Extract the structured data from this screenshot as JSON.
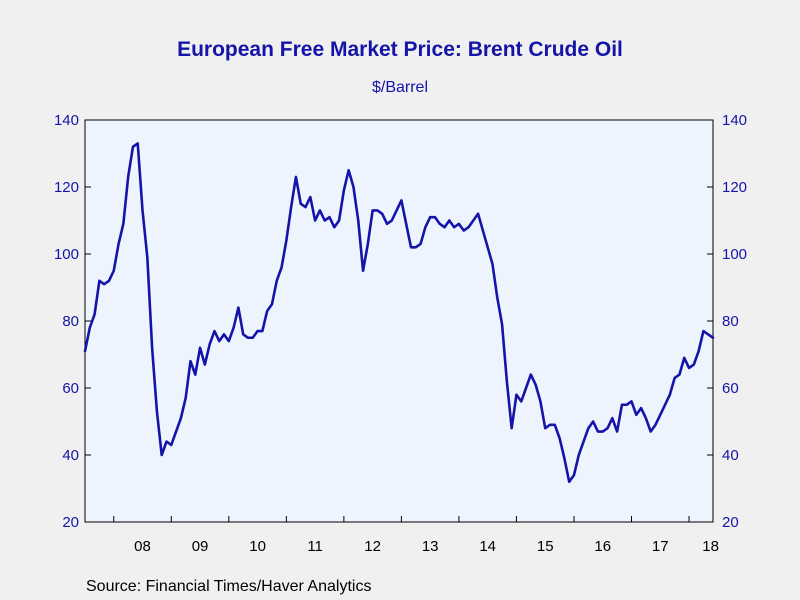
{
  "chart_data": {
    "type": "line",
    "title": "European Free Market Price: Brent Crude Oil",
    "subtitle": "$/Barrel",
    "source": "Source:  Financial Times/Haver Analytics",
    "ylim": [
      20,
      140
    ],
    "yticks": [
      20,
      40,
      60,
      80,
      100,
      120,
      140
    ],
    "x_start": "2007-07",
    "x_end": "2018-06",
    "xtick_labels": [
      "08",
      "09",
      "10",
      "11",
      "12",
      "13",
      "14",
      "15",
      "16",
      "17",
      "18"
    ],
    "grid": false,
    "colors": {
      "line": "#1414a8",
      "plot_bg": "#eef4fe",
      "page_bg": "#f0f0f0",
      "axis": "#000000",
      "tick_label": "#1414a8"
    },
    "series": [
      {
        "values": [
          71,
          78,
          82,
          92,
          91,
          92,
          95,
          103,
          109,
          123,
          132,
          133,
          113,
          99,
          72,
          53,
          40,
          44,
          43,
          47,
          51,
          57,
          68,
          64,
          72,
          67,
          73,
          77,
          74,
          76,
          74,
          78,
          84,
          76,
          75,
          75,
          77,
          77,
          83,
          85,
          92,
          96,
          104,
          114,
          123,
          115,
          114,
          117,
          110,
          113,
          110,
          111,
          108,
          110,
          119,
          125,
          120,
          110,
          95,
          103,
          113,
          113,
          112,
          109,
          110,
          113,
          116,
          109,
          102,
          102,
          103,
          108,
          111,
          111,
          109,
          108,
          110,
          108,
          109,
          107,
          108,
          110,
          112,
          107,
          102,
          97,
          87,
          79,
          62,
          48,
          58,
          56,
          60,
          64,
          61,
          56,
          48,
          49,
          49,
          45,
          39,
          32,
          34,
          40,
          44,
          48,
          50,
          47,
          47,
          48,
          51,
          47,
          55,
          55,
          56,
          52,
          54,
          51,
          47,
          49,
          52,
          55,
          58,
          63,
          64,
          69,
          66,
          67,
          71,
          77,
          76,
          75
        ]
      }
    ]
  }
}
